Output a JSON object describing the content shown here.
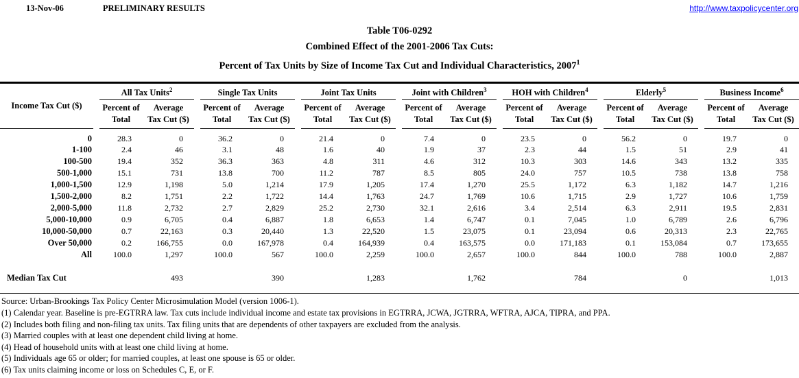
{
  "header": {
    "date": "13-Nov-06",
    "preliminary": "PRELIMINARY RESULTS",
    "url": "http://www.taxpolicycenter.org"
  },
  "title": {
    "line1": "Table T06-0292",
    "line2": "Combined Effect of the 2001-2006 Tax Cuts:",
    "line3": "Percent of Tax Units by Size of Income Tax Cut and Individual Characteristics, 2007",
    "line3_sup": "1"
  },
  "colors": {
    "link_blue": "#0000ff",
    "text": "#000000",
    "background": "#ffffff"
  },
  "table": {
    "row_header": "Income Tax Cut ($)",
    "groups": [
      {
        "label": "All Tax Units",
        "sup": "2"
      },
      {
        "label": "Single Tax Units",
        "sup": ""
      },
      {
        "label": "Joint Tax Units",
        "sup": ""
      },
      {
        "label": "Joint with Children",
        "sup": "3"
      },
      {
        "label": "HOH with Children",
        "sup": "4"
      },
      {
        "label": "Elderly",
        "sup": "5"
      },
      {
        "label": "Business Income",
        "sup": "6"
      }
    ],
    "subheaders": {
      "percent": "Percent of\nTotal",
      "average": "Average\nTax Cut ($)"
    },
    "rows": [
      {
        "label": "0",
        "values": [
          "28.3",
          "0",
          "36.2",
          "0",
          "21.4",
          "0",
          "7.4",
          "0",
          "23.5",
          "0",
          "56.2",
          "0",
          "19.7",
          "0"
        ]
      },
      {
        "label": "1-100",
        "values": [
          "2.4",
          "46",
          "3.1",
          "48",
          "1.6",
          "40",
          "1.9",
          "37",
          "2.3",
          "44",
          "1.5",
          "51",
          "2.9",
          "41"
        ]
      },
      {
        "label": "100-500",
        "values": [
          "19.4",
          "352",
          "36.3",
          "363",
          "4.8",
          "311",
          "4.6",
          "312",
          "10.3",
          "303",
          "14.6",
          "343",
          "13.2",
          "335"
        ]
      },
      {
        "label": "500-1,000",
        "values": [
          "15.1",
          "731",
          "13.8",
          "700",
          "11.2",
          "787",
          "8.5",
          "805",
          "24.0",
          "757",
          "10.5",
          "738",
          "13.8",
          "758"
        ]
      },
      {
        "label": "1,000-1,500",
        "values": [
          "12.9",
          "1,198",
          "5.0",
          "1,214",
          "17.9",
          "1,205",
          "17.4",
          "1,270",
          "25.5",
          "1,172",
          "6.3",
          "1,182",
          "14.7",
          "1,216"
        ]
      },
      {
        "label": "1,500-2,000",
        "values": [
          "8.2",
          "1,751",
          "2.2",
          "1,722",
          "14.4",
          "1,763",
          "24.7",
          "1,769",
          "10.6",
          "1,715",
          "2.9",
          "1,727",
          "10.6",
          "1,759"
        ]
      },
      {
        "label": "2,000-5,000",
        "values": [
          "11.8",
          "2,732",
          "2.7",
          "2,829",
          "25.2",
          "2,730",
          "32.1",
          "2,616",
          "3.4",
          "2,514",
          "6.3",
          "2,911",
          "19.5",
          "2,831"
        ]
      },
      {
        "label": "5,000-10,000",
        "values": [
          "0.9",
          "6,705",
          "0.4",
          "6,887",
          "1.8",
          "6,653",
          "1.4",
          "6,747",
          "0.1",
          "7,045",
          "1.0",
          "6,789",
          "2.6",
          "6,796"
        ]
      },
      {
        "label": "10,000-50,000",
        "values": [
          "0.7",
          "22,163",
          "0.3",
          "20,440",
          "1.3",
          "22,520",
          "1.5",
          "23,075",
          "0.1",
          "23,094",
          "0.6",
          "20,313",
          "2.3",
          "22,765"
        ]
      },
      {
        "label": "Over 50,000",
        "values": [
          "0.2",
          "166,755",
          "0.0",
          "167,978",
          "0.4",
          "164,939",
          "0.4",
          "163,575",
          "0.0",
          "171,183",
          "0.1",
          "153,084",
          "0.7",
          "173,655"
        ]
      },
      {
        "label": "All",
        "values": [
          "100.0",
          "1,297",
          "100.0",
          "567",
          "100.0",
          "2,259",
          "100.0",
          "2,657",
          "100.0",
          "844",
          "100.0",
          "788",
          "100.0",
          "2,887"
        ]
      }
    ],
    "median_row": {
      "label": "Median Tax Cut",
      "values": [
        "493",
        "390",
        "1,283",
        "1,762",
        "784",
        "0",
        "1,013"
      ]
    }
  },
  "footnotes": [
    "Source: Urban-Brookings Tax Policy Center Microsimulation Model (version 1006-1).",
    "(1) Calendar year. Baseline is pre-EGTRRA law. Tax cuts include individual income and estate tax provisions in EGTRRA, JCWA, JGTRRA, WFTRA, AJCA, TIPRA, and PPA.",
    "(2) Includes both filing and non-filing tax units.  Tax filing units that are dependents of other taxpayers are excluded from the analysis.",
    "(3) Married couples with at least one dependent child living at home.",
    "(4) Head of household units with at least one child living at home.",
    "(5) Individuals age 65 or older; for married couples, at least one spouse is 65 or older.",
    "(6) Tax units claiming income or loss on Schedules C, E, or F."
  ]
}
